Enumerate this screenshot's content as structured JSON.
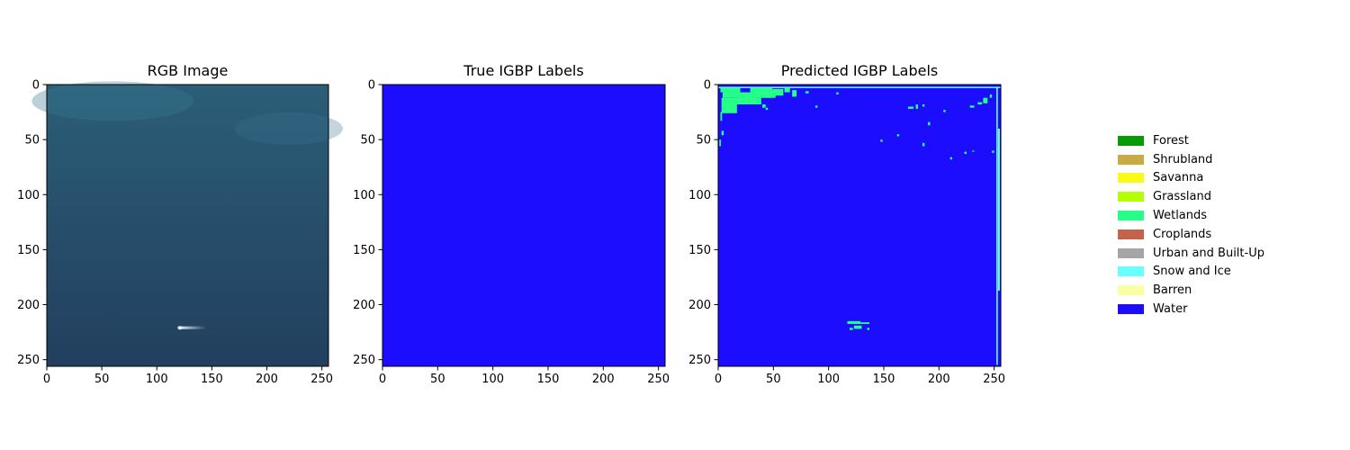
{
  "chart_data": [
    {
      "type": "heatmap",
      "title": "RGB Image",
      "xlabel": "",
      "ylabel": "",
      "xlim": [
        0,
        256
      ],
      "ylim": [
        256,
        0
      ],
      "xticks": [
        0,
        50,
        100,
        150,
        200,
        250
      ],
      "yticks": [
        0,
        50,
        100,
        150,
        200,
        250
      ],
      "image": "satellite RGB of open water",
      "colors": {
        "top": "#2b5e78",
        "bottom": "#223f5e",
        "wake": "#e8f4f8"
      }
    },
    {
      "type": "heatmap",
      "title": "True IGBP Labels",
      "xlabel": "",
      "ylabel": "",
      "xlim": [
        0,
        256
      ],
      "ylim": [
        256,
        0
      ],
      "xticks": [
        0,
        50,
        100,
        150,
        200,
        250
      ],
      "yticks": [
        0,
        50,
        100,
        150,
        200,
        250
      ],
      "label_fill": "Water"
    },
    {
      "type": "heatmap",
      "title": "Predicted IGBP Labels",
      "xlabel": "",
      "ylabel": "",
      "xlim": [
        0,
        256
      ],
      "ylim": [
        256,
        0
      ],
      "xticks": [
        0,
        50,
        100,
        150,
        200,
        250
      ],
      "yticks": [
        0,
        50,
        100,
        150,
        200,
        250
      ],
      "label_fill": "Water",
      "secondary_labels": [
        "Wetlands",
        "Snow and Ice"
      ]
    }
  ],
  "legend": [
    {
      "label": "Forest",
      "color": "#069c06"
    },
    {
      "label": "Shrubland",
      "color": "#c8ab45"
    },
    {
      "label": "Savanna",
      "color": "#fafa1a"
    },
    {
      "label": "Grassland",
      "color": "#b4ff05"
    },
    {
      "label": "Wetlands",
      "color": "#26ff87"
    },
    {
      "label": "Croplands",
      "color": "#c3634a"
    },
    {
      "label": "Urban and Built-Up",
      "color": "#a5a5a5"
    },
    {
      "label": "Snow and Ice",
      "color": "#69ffff"
    },
    {
      "label": "Barren",
      "color": "#f9ffa3"
    },
    {
      "label": "Water",
      "color": "#1c0dff"
    }
  ]
}
